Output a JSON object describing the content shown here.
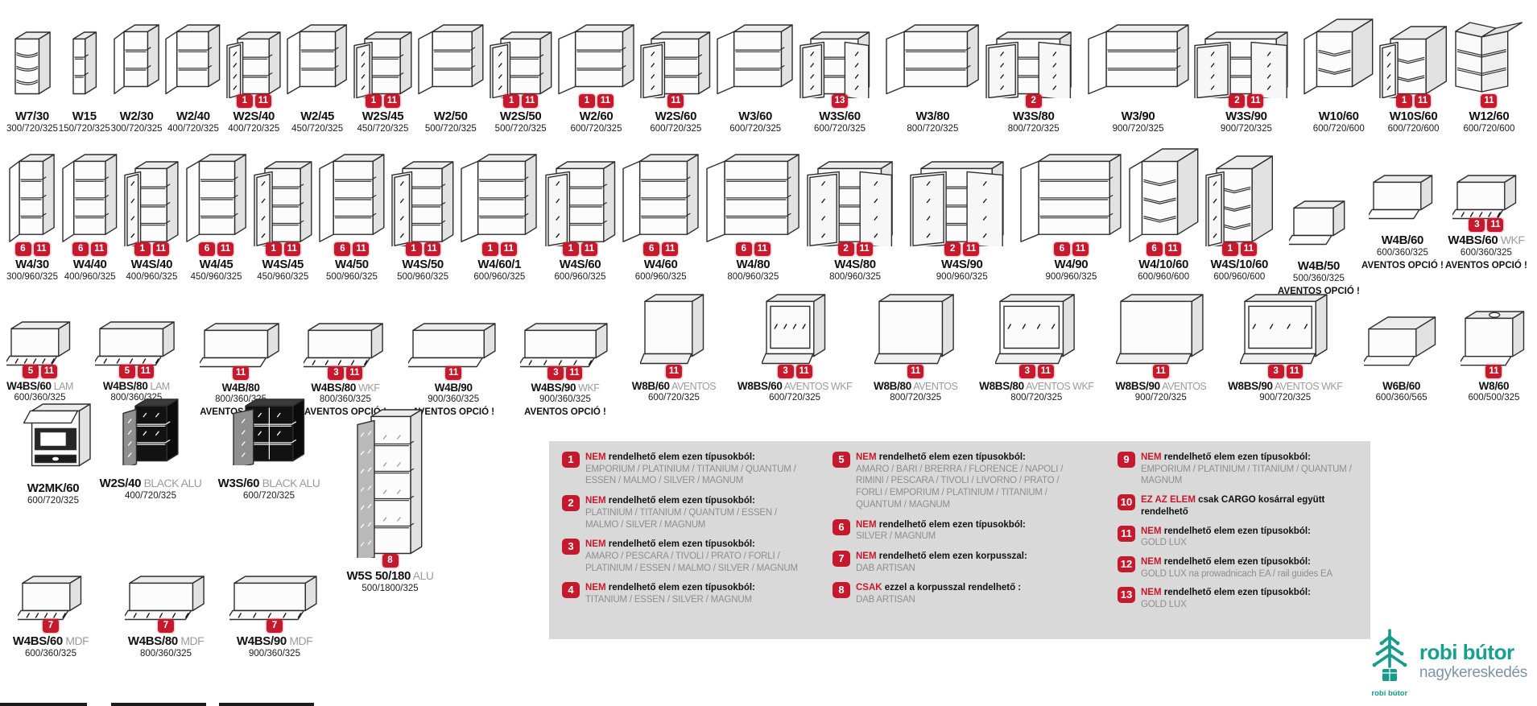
{
  "colors": {
    "badge_red": "#c5192d",
    "legend_bg": "#d9d9d9",
    "logo_teal": "#17a08f",
    "logo_gray": "#7e93a8"
  },
  "rows": [
    {
      "items": [
        {
          "name": "W7/30",
          "dims": "300/720/325",
          "badges": [],
          "type": "open-corner-shelf"
        },
        {
          "name": "W15",
          "dims": "150/720/325",
          "badges": [],
          "type": "open-shelf"
        },
        {
          "name": "W2/30",
          "dims": "300/720/325",
          "badges": [],
          "type": "door"
        },
        {
          "name": "W2/40",
          "dims": "400/720/325",
          "badges": [],
          "type": "door"
        },
        {
          "name": "W2S/40",
          "dims": "400/720/325",
          "badges": [
            1,
            11
          ],
          "type": "glass"
        },
        {
          "name": "W2/45",
          "dims": "450/720/325",
          "badges": [],
          "type": "door"
        },
        {
          "name": "W2S/45",
          "dims": "450/720/325",
          "badges": [
            1,
            11
          ],
          "type": "glass"
        },
        {
          "name": "W2/50",
          "dims": "500/720/325",
          "badges": [],
          "type": "door"
        },
        {
          "name": "W2S/50",
          "dims": "500/720/325",
          "badges": [
            1,
            11
          ],
          "type": "glass"
        },
        {
          "name": "W2/60",
          "dims": "600/720/325",
          "badges": [
            1,
            11
          ],
          "type": "door"
        },
        {
          "name": "W2S/60",
          "dims": "600/720/325",
          "badges": [
            11
          ],
          "type": "glass"
        },
        {
          "name": "W3/60",
          "dims": "600/720/325",
          "badges": [],
          "type": "door"
        },
        {
          "name": "W3S/60",
          "dims": "600/720/325",
          "badges": [
            13
          ],
          "type": "glass2"
        },
        {
          "name": "W3/80",
          "dims": "800/720/325",
          "badges": [],
          "type": "door"
        },
        {
          "name": "W3S/80",
          "dims": "800/720/325",
          "badges": [
            2
          ],
          "type": "glass2"
        },
        {
          "name": "W3/90",
          "dims": "900/720/325",
          "badges": [],
          "type": "door"
        },
        {
          "name": "W3S/90",
          "dims": "900/720/325",
          "badges": [
            2,
            11
          ],
          "type": "glass2"
        },
        {
          "name": "W10/60",
          "dims": "600/720/600",
          "badges": [],
          "type": "corner-door"
        },
        {
          "name": "W10S/60",
          "dims": "600/720/600",
          "badges": [
            1,
            11
          ],
          "type": "corner-glass"
        },
        {
          "name": "W12/60",
          "dims": "600/720/600",
          "badges": [
            11
          ],
          "type": "corner-open"
        }
      ]
    },
    {
      "items": [
        {
          "name": "W4/30",
          "dims": "300/960/325",
          "badges": [
            6,
            11
          ],
          "type": "door"
        },
        {
          "name": "W4/40",
          "dims": "400/960/325",
          "badges": [
            6,
            11
          ],
          "type": "door"
        },
        {
          "name": "W4S/40",
          "dims": "400/960/325",
          "badges": [
            1,
            11
          ],
          "type": "glass"
        },
        {
          "name": "W4/45",
          "dims": "450/960/325",
          "badges": [
            6,
            11
          ],
          "type": "door"
        },
        {
          "name": "W4S/45",
          "dims": "450/960/325",
          "badges": [
            1,
            11
          ],
          "type": "glass"
        },
        {
          "name": "W4/50",
          "dims": "500/960/325",
          "badges": [
            6,
            11
          ],
          "type": "door"
        },
        {
          "name": "W4S/50",
          "dims": "500/960/325",
          "badges": [
            1,
            11
          ],
          "type": "glass"
        },
        {
          "name": "W4/60/1",
          "dims": "600/960/325",
          "badges": [
            1,
            11
          ],
          "type": "door"
        },
        {
          "name": "W4S/60",
          "dims": "600/960/325",
          "badges": [
            1,
            11
          ],
          "type": "glass"
        },
        {
          "name": "W4/60",
          "dims": "600/960/325",
          "badges": [
            6,
            11
          ],
          "type": "door"
        },
        {
          "name": "W4/80",
          "dims": "800/960/325",
          "badges": [
            6,
            11
          ],
          "type": "door"
        },
        {
          "name": "W4S/80",
          "dims": "800/960/325",
          "badges": [
            2,
            11
          ],
          "type": "glass2"
        },
        {
          "name": "W4S/90",
          "dims": "900/960/325",
          "badges": [
            2,
            11
          ],
          "type": "glass2"
        },
        {
          "name": "W4/90",
          "dims": "900/960/325",
          "badges": [
            6,
            11
          ],
          "type": "door"
        },
        {
          "name": "W4/10/60",
          "dims": "600/960/600",
          "badges": [
            6,
            11
          ],
          "type": "corner-door"
        },
        {
          "name": "W4S/10/60",
          "dims": "600/960/600",
          "badges": [
            1,
            11
          ],
          "type": "corner-glass"
        },
        {
          "name": "W4B/50",
          "dims": "500/360/325",
          "badges": [],
          "type": "flip",
          "note": "AVENTOS OPCIÓ !"
        },
        {
          "name": "W4B/60",
          "dims": "600/360/325",
          "badges": [],
          "type": "flip",
          "note": "AVENTOS OPCIÓ !"
        },
        {
          "name": "W4BS/60",
          "suffix": "WKF",
          "dims": "600/360/325",
          "badges": [
            3,
            11
          ],
          "type": "flip-glass",
          "note": "AVENTOS OPCIÓ !"
        }
      ]
    },
    {
      "items": [
        {
          "name": "W4BS/60",
          "suffix": "LAM",
          "dims": "600/360/325",
          "badges": [
            5,
            11
          ],
          "type": "flip-glass"
        },
        {
          "name": "W4BS/80",
          "suffix": "LAM",
          "dims": "800/360/325",
          "badges": [
            5,
            11
          ],
          "type": "flip-glass"
        },
        {
          "name": "W4B/80",
          "dims": "800/360/325",
          "badges": [
            11
          ],
          "type": "flip",
          "note": "AVENTOS OPCIÓ !"
        },
        {
          "name": "W4BS/80",
          "suffix": "WKF",
          "dims": "800/360/325",
          "badges": [
            3,
            11
          ],
          "type": "flip-glass",
          "note": "AVENTOS OPCIÓ !"
        },
        {
          "name": "W4B/90",
          "dims": "900/360/325",
          "badges": [
            11
          ],
          "type": "flip",
          "note": "AVENTOS OPCIÓ !"
        },
        {
          "name": "W4BS/90",
          "suffix": "WKF",
          "dims": "900/360/325",
          "badges": [
            3,
            11
          ],
          "type": "flip-glass",
          "note": "AVENTOS OPCIÓ !"
        },
        {
          "name": "W8B/60",
          "suffix": "AVENTOS",
          "dims": "600/720/325",
          "badges": [
            11
          ],
          "type": "flip-door"
        },
        {
          "name": "W8BS/60",
          "suffix": "AVENTOS WKF",
          "dims": "600/720/325",
          "badges": [
            3,
            11
          ],
          "type": "flip-door-glass"
        },
        {
          "name": "W8B/80",
          "suffix": "AVENTOS",
          "dims": "800/720/325",
          "badges": [
            11
          ],
          "type": "flip-door"
        },
        {
          "name": "W8BS/80",
          "suffix": "AVENTOS WKF",
          "dims": "800/720/325",
          "badges": [
            3,
            11
          ],
          "type": "flip-door-glass"
        },
        {
          "name": "W8BS/90",
          "suffix": "AVENTOS",
          "dims": "900/720/325",
          "badges": [
            11
          ],
          "type": "flip-door"
        },
        {
          "name": "W8BS/90",
          "suffix": "AVENTOS WKF",
          "dims": "900/720/325",
          "badges": [
            3,
            11
          ],
          "type": "flip-door-glass"
        },
        {
          "name": "W6B/60",
          "dims": "600/360/565",
          "badges": [],
          "type": "flip"
        },
        {
          "name": "W8/60",
          "dims": "600/500/325",
          "badges": [
            11
          ],
          "type": "flip-hole"
        }
      ]
    }
  ],
  "bottom": {
    "items": [
      {
        "name": "W2MK/60",
        "dims": "600/720/325",
        "badges": [],
        "type": "microwave"
      },
      {
        "name": "W2S/40",
        "suffix": "BLACK ALU",
        "dims": "400/720/325",
        "badges": [],
        "type": "black-glass"
      },
      {
        "name": "W3S/60",
        "suffix": "BLACK ALU",
        "dims": "600/720/325",
        "badges": [],
        "type": "black-glass"
      },
      {
        "name": "W5S 50/180",
        "suffix": "ALU",
        "dims": "500/1800/325",
        "badges": [
          8
        ],
        "type": "tall-glass"
      },
      {
        "name": "W4BS/60",
        "suffix": "MDF",
        "dims": "600/360/325",
        "badges": [
          7
        ],
        "type": "flip-glass"
      },
      {
        "name": "W4BS/80",
        "suffix": "MDF",
        "dims": "800/360/325",
        "badges": [
          7
        ],
        "type": "flip-glass"
      },
      {
        "name": "W4BS/90",
        "suffix": "MDF",
        "dims": "900/360/325",
        "badges": [
          7
        ],
        "type": "flip-glass"
      }
    ]
  },
  "legend": {
    "columns": [
      [
        {
          "num": "1",
          "lead": "NEM",
          "head": "rendelhető elem ezen típusokból:",
          "detail": "EMPORIUM / PLATINIUM / TITANIUM / QUANTUM / ESSEN / MALMO / SILVER / MAGNUM"
        },
        {
          "num": "2",
          "lead": "NEM",
          "head": "rendelhető elem ezen típusokból:",
          "detail": "PLATINIUM / TITANIUM / QUANTUM / ESSEN / MALMO / SILVER / MAGNUM"
        },
        {
          "num": "3",
          "lead": "NEM",
          "head": "rendelhető elem ezen típusokból:",
          "detail": "AMARO / PESCARA / TIVOLI / PRATO / FORLI / PLATINIUM / ESSEN / MALMO / SILVER / MAGNUM"
        },
        {
          "num": "4",
          "lead": "NEM",
          "head": "rendelhető elem ezen típusokból:",
          "detail": "TITANIUM /  ESSEN / SILVER / MAGNUM"
        }
      ],
      [
        {
          "num": "5",
          "lead": "NEM",
          "head": "rendelhető elem ezen típusokból:",
          "detail": "AMARO / BARI / BRERRA / FLORENCE / NAPOLI / RIMINI / PESCARA / TIVOLI / LIVORNO / PRATO / FORLI / EMPORIUM / PLATINIUM / TITANIUM / QUANTUM / MAGNUM"
        },
        {
          "num": "6",
          "lead": "NEM",
          "head": "rendelhető elem ezen típusokból:",
          "detail": "SILVER / MAGNUM"
        },
        {
          "num": "7",
          "lead": "NEM",
          "head": "rendelhető elem ezen korpusszal:",
          "detail": "DAB ARTISAN"
        },
        {
          "num": "8",
          "lead": "CSAK",
          "head": "ezzel a korpusszal rendelhető :",
          "detail": "DAB ARTISAN"
        }
      ],
      [
        {
          "num": "9",
          "lead": "NEM",
          "head": "rendelhető elem ezen típusokból:",
          "detail": "EMPORIUM / PLATINIUM / TITANIUM / QUANTUM / MAGNUM"
        },
        {
          "num": "10",
          "lead": "EZ AZ ELEM",
          "head": "csak CARGO kosárral  együtt rendelhető",
          "detail": ""
        },
        {
          "num": "11",
          "lead": "NEM",
          "head": "rendelhető elem ezen típusokból:",
          "detail": "GOLD LUX"
        },
        {
          "num": "12",
          "lead": "NEM",
          "head": "rendelhető elem ezen típusokból:",
          "detail": "GOLD LUX na prowadnicach EA / rail guides EA"
        },
        {
          "num": "13",
          "lead": "NEM",
          "head": "rendelhető elem ezen típusokból:",
          "detail": "GOLD LUX"
        }
      ]
    ]
  },
  "logo": {
    "title": "robi bútor",
    "subtitle": "nagykereskedés",
    "caption": "robi bútor"
  }
}
